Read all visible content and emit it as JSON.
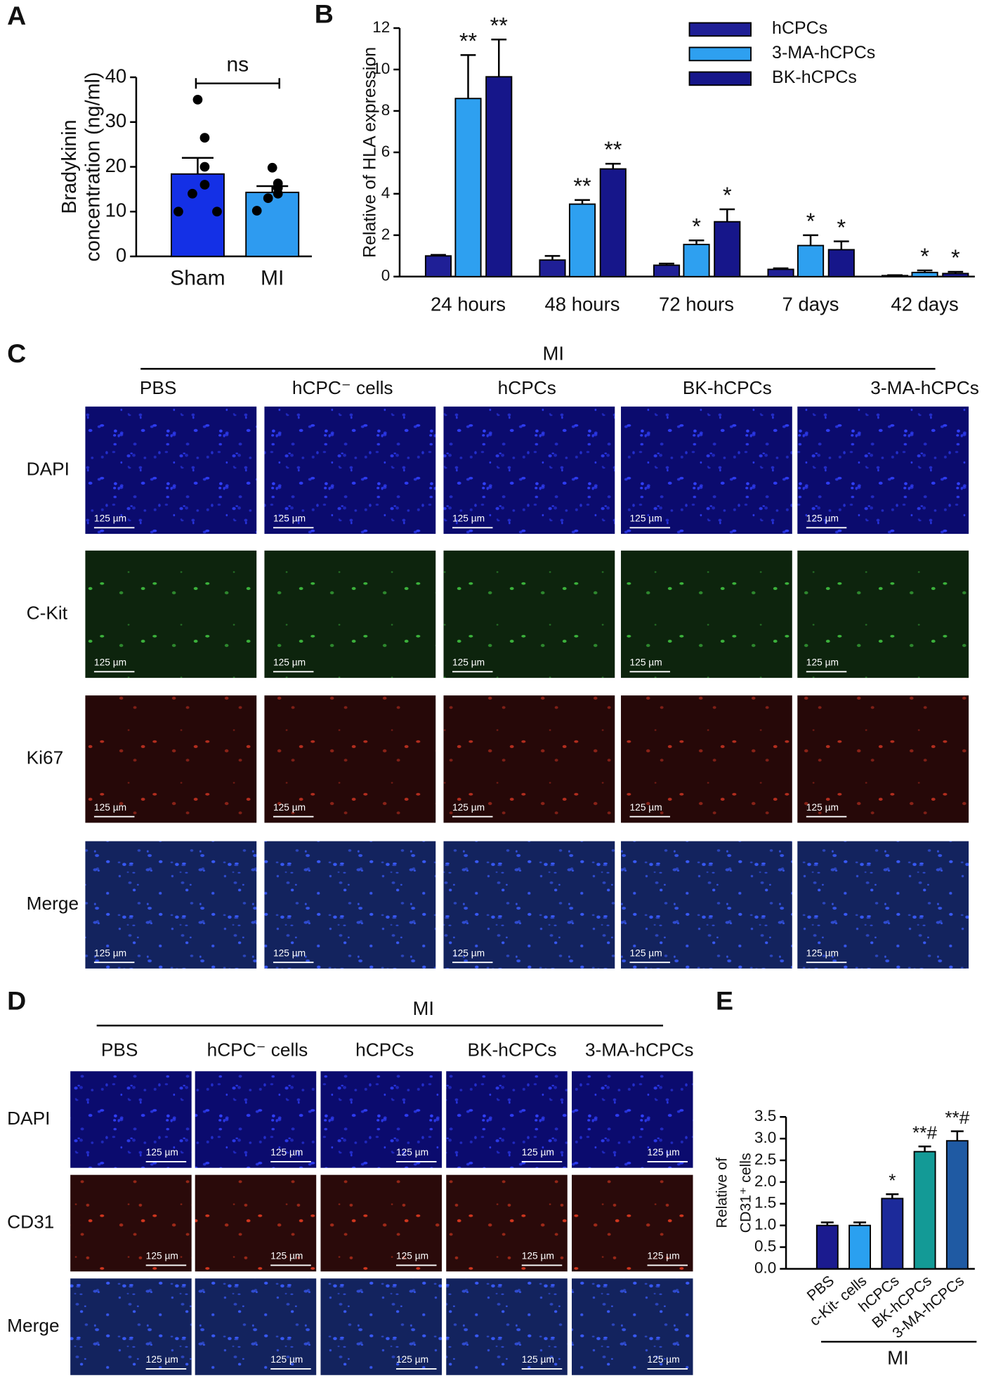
{
  "panel_labels": [
    "A",
    "B",
    "C",
    "D",
    "E"
  ],
  "chart_data": [
    {
      "type": "bar",
      "categories": [
        "Sham",
        "MI"
      ],
      "values": [
        18.4,
        14.3
      ],
      "errors": [
        3.6,
        1.4
      ],
      "points": [
        [
          35,
          26.5,
          20,
          16,
          14,
          10,
          10
        ],
        [
          19.8,
          16.3,
          15.3,
          14,
          13,
          10.2
        ]
      ],
      "colors": [
        "#1430e6",
        "#2e9bf0"
      ],
      "ylabel": [
        "Bradykinin",
        "concentration (ng/ml)"
      ],
      "ylim": [
        0,
        40
      ],
      "yticks": [
        0,
        10,
        20,
        30,
        40
      ],
      "annotations": [
        "ns"
      ]
    },
    {
      "type": "bar",
      "categories": [
        "24 hours",
        "48 hours",
        "72 hours",
        "7 days",
        "42 days"
      ],
      "ylabel": [
        "Relative of HLA expression"
      ],
      "ylim": [
        0,
        12
      ],
      "yticks": [
        0,
        2,
        4,
        6,
        8,
        10,
        12
      ],
      "legend": "top-right",
      "series": [
        {
          "name": "hCPCs",
          "color": "#1f1f96",
          "values": [
            1.0,
            0.8,
            0.55,
            0.35,
            0.05
          ],
          "errors": [
            0.05,
            0.2,
            0.08,
            0.05,
            0.02
          ]
        },
        {
          "name": "3-MA-hCPCs",
          "color": "#2ea0f0",
          "values": [
            8.6,
            3.5,
            1.55,
            1.5,
            0.2
          ],
          "errors": [
            2.1,
            0.2,
            0.2,
            0.5,
            0.1
          ],
          "significance": [
            "**",
            "**",
            "*",
            "*",
            "*"
          ]
        },
        {
          "name": "BK-hCPCs",
          "color": "#16168a",
          "values": [
            9.65,
            5.2,
            2.65,
            1.3,
            0.15
          ],
          "errors": [
            1.8,
            0.25,
            0.6,
            0.4,
            0.08
          ],
          "significance": [
            "**",
            "**",
            "*",
            "*",
            "*"
          ]
        }
      ]
    },
    {
      "type": "bar",
      "categories": [
        "PBS",
        "c-Kit- cells",
        "hCPCs",
        "BK-hCPCs",
        "3-MA-hCPCs"
      ],
      "values": [
        1.0,
        1.0,
        1.62,
        2.7,
        2.95
      ],
      "errors": [
        0.07,
        0.07,
        0.1,
        0.12,
        0.22
      ],
      "colors": [
        "#1b1b8f",
        "#2aa0f0",
        "#1c2a9a",
        "#139a96",
        "#1f5aa3"
      ],
      "significance": [
        null,
        null,
        "*",
        "**#",
        "**#"
      ],
      "ylabel": [
        "Relative of",
        "CD31⁺ cells"
      ],
      "group_label": "MI",
      "ylim": [
        0,
        3.5
      ],
      "yticks": [
        {
          "value": 0,
          "label": "0.0"
        },
        {
          "value": 0.5,
          "label": "0.5"
        },
        {
          "value": 1,
          "label": "1.0"
        },
        {
          "value": 1.5,
          "label": "1.5"
        },
        {
          "value": 2,
          "label": "2.0"
        },
        {
          "value": 2.5,
          "label": "2.5"
        },
        {
          "value": 3,
          "label": "3.0"
        },
        {
          "value": 3.5,
          "label": "3.5"
        }
      ]
    }
  ],
  "panel_c": {
    "group_label": "MI",
    "columns": [
      "PBS",
      "hCPC⁻ cells",
      "hCPCs",
      "BK-hCPCs",
      "3-MA-hCPCs"
    ],
    "rows": [
      "DAPI",
      "C-Kit",
      "Ki67",
      "Merge"
    ],
    "scale_bar": "125 µm"
  },
  "panel_d": {
    "group_label": "MI",
    "columns": [
      "PBS",
      "hCPC⁻ cells",
      "hCPCs",
      "BK-hCPCs",
      "3-MA-hCPCs"
    ],
    "rows": [
      "DAPI",
      "CD31",
      "Merge"
    ],
    "scale_bar": "125 µm"
  }
}
